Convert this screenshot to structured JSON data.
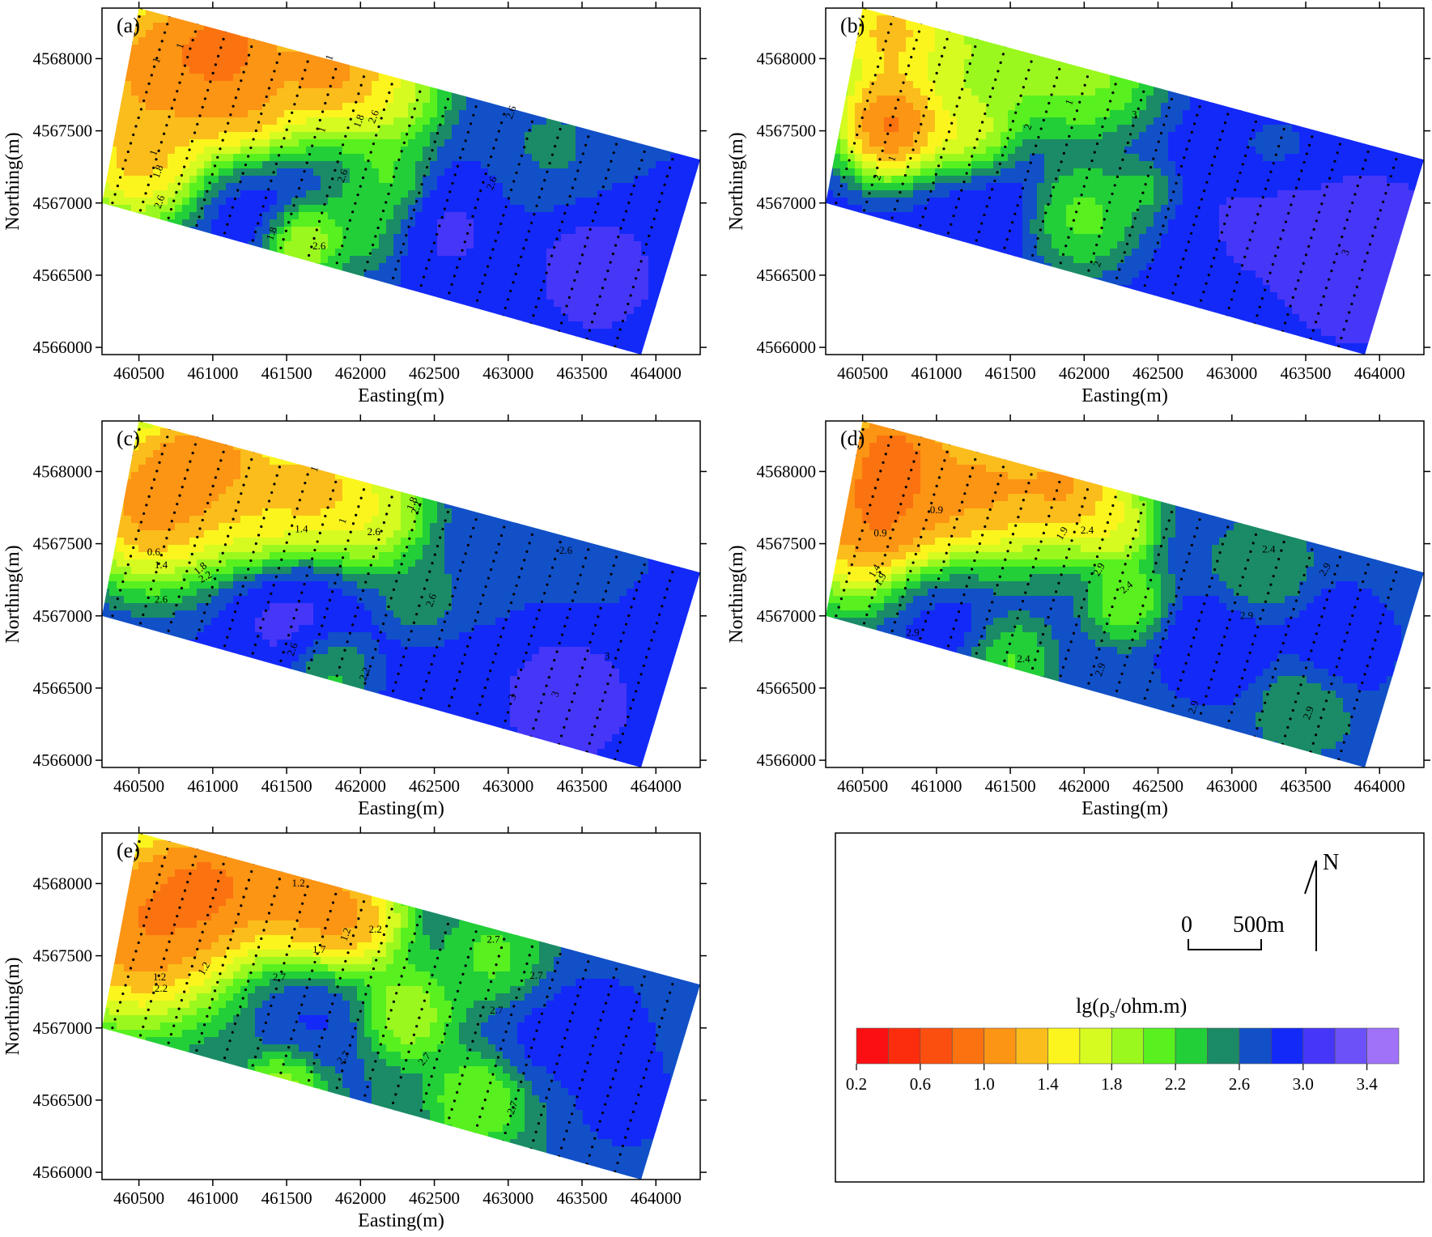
{
  "chart_data": [
    {
      "type": "heatmap",
      "panel": "(a)",
      "xlabel": "Easting(m)",
      "ylabel": "Northing(m)",
      "x_ticks": [
        "460500",
        "461000",
        "461500",
        "462000",
        "462500",
        "463000",
        "463500",
        "464000"
      ],
      "y_ticks": [
        "4568000",
        "4567500",
        "4567000",
        "4566500",
        "4566000"
      ],
      "xlim": [
        460250,
        464300
      ],
      "ylim": [
        4565950,
        4568350
      ],
      "field": {
        "bg": 2.8,
        "blobs": [
          [
            460600,
            4567950,
            0.45,
            0.55
          ],
          [
            461100,
            4568150,
            0.35,
            0.45
          ],
          [
            461800,
            4567950,
            0.3,
            0.5
          ],
          [
            461200,
            4567700,
            0.38,
            0.7
          ],
          [
            460500,
            4567300,
            0.35,
            0.9
          ],
          [
            462100,
            4567800,
            0.35,
            1.2
          ],
          [
            461600,
            4566750,
            0.2,
            1.3
          ],
          [
            462200,
            4567150,
            0.2,
            2.0
          ],
          [
            462000,
            4566850,
            0.25,
            2.1
          ],
          [
            463300,
            4567400,
            0.3,
            2.5
          ],
          [
            463600,
            4566500,
            0.35,
            3.2
          ],
          [
            462600,
            4566800,
            0.3,
            3.1
          ],
          [
            461300,
            4567000,
            0.3,
            3.0
          ]
        ]
      },
      "contour_labels": [
        {
          "text": "1",
          "x": 460640,
          "y": 4567980,
          "rot": -70
        },
        {
          "text": "1",
          "x": 460800,
          "y": 4568080,
          "rot": -70
        },
        {
          "text": "1",
          "x": 461810,
          "y": 4568000,
          "rot": -70
        },
        {
          "text": "1",
          "x": 461760,
          "y": 4567500,
          "rot": -70
        },
        {
          "text": "1.8",
          "x": 462010,
          "y": 4567560,
          "rot": -70
        },
        {
          "text": "2.6",
          "x": 462110,
          "y": 4567590,
          "rot": -70
        },
        {
          "text": "2.6",
          "x": 463040,
          "y": 4567620,
          "rot": -70
        },
        {
          "text": "1",
          "x": 460620,
          "y": 4567340,
          "rot": -70
        },
        {
          "text": "1.8",
          "x": 460650,
          "y": 4567210,
          "rot": -70
        },
        {
          "text": "2.6",
          "x": 460660,
          "y": 4567000,
          "rot": -70
        },
        {
          "text": "2.6",
          "x": 461900,
          "y": 4567180,
          "rot": -70
        },
        {
          "text": "2.6",
          "x": 462910,
          "y": 4567130,
          "rot": -70
        },
        {
          "text": "1.8",
          "x": 461420,
          "y": 4566780,
          "rot": -70
        },
        {
          "text": "2.6",
          "x": 461720,
          "y": 4566680,
          "rot": 0
        }
      ]
    },
    {
      "type": "heatmap",
      "panel": "(b)",
      "xlabel": "Easting(m)",
      "ylabel": "Northing(m)",
      "x_ticks": [
        "460500",
        "461000",
        "461500",
        "462000",
        "462500",
        "463000",
        "463500",
        "464000"
      ],
      "y_ticks": [
        "4568000",
        "4567500",
        "4567000",
        "4566500",
        "4566000"
      ],
      "xlim": [
        460250,
        464300
      ],
      "ylim": [
        4565950,
        4568350
      ],
      "field": {
        "bg": 2.9,
        "blobs": [
          [
            460700,
            4568200,
            0.35,
            0.8
          ],
          [
            460700,
            4567550,
            0.3,
            0.3
          ],
          [
            461300,
            4568000,
            0.4,
            1.5
          ],
          [
            462000,
            4567950,
            0.4,
            1.6
          ],
          [
            461200,
            4567450,
            0.25,
            1.2
          ],
          [
            462000,
            4566900,
            0.3,
            1.9
          ],
          [
            462400,
            4567100,
            0.15,
            2.2
          ],
          [
            463300,
            4567300,
            0.25,
            2.7
          ],
          [
            463900,
            4566600,
            0.4,
            3.3
          ],
          [
            463300,
            4566900,
            0.3,
            3.2
          ],
          [
            461300,
            4567000,
            0.3,
            3.0
          ]
        ]
      },
      "contour_labels": [
        {
          "text": "2",
          "x": 460620,
          "y": 4567170,
          "rot": -70
        },
        {
          "text": "1",
          "x": 460720,
          "y": 4567300,
          "rot": -70
        },
        {
          "text": "1",
          "x": 461920,
          "y": 4567690,
          "rot": -70
        },
        {
          "text": "2",
          "x": 461640,
          "y": 4567520,
          "rot": -70
        },
        {
          "text": "3",
          "x": 462340,
          "y": 4567590,
          "rot": 0
        },
        {
          "text": "2",
          "x": 462110,
          "y": 4566570,
          "rot": -70
        },
        {
          "text": "3",
          "x": 463790,
          "y": 4566650,
          "rot": -70
        }
      ]
    },
    {
      "type": "heatmap",
      "panel": "(c)",
      "xlabel": "Easting(m)",
      "ylabel": "Northing(m)",
      "x_ticks": [
        "460500",
        "461000",
        "461500",
        "462000",
        "462500",
        "463000",
        "463500",
        "464000"
      ],
      "y_ticks": [
        "4568000",
        "4567500",
        "4567000",
        "4566500",
        "4566000"
      ],
      "xlim": [
        460250,
        464300
      ],
      "ylim": [
        4565950,
        4568350
      ],
      "field": {
        "bg": 2.85,
        "blobs": [
          [
            460600,
            4567800,
            0.45,
            0.5
          ],
          [
            461000,
            4568100,
            0.35,
            0.6
          ],
          [
            461700,
            4567900,
            0.35,
            0.8
          ],
          [
            461300,
            4567700,
            0.3,
            1.2
          ],
          [
            462100,
            4567700,
            0.3,
            1.3
          ],
          [
            462400,
            4567150,
            0.2,
            2.3
          ],
          [
            461800,
            4566600,
            0.2,
            2.2
          ],
          [
            462800,
            4567400,
            0.3,
            2.6
          ],
          [
            463500,
            4567500,
            0.3,
            2.6
          ],
          [
            463400,
            4566400,
            0.35,
            3.2
          ],
          [
            461500,
            4567000,
            0.3,
            3.1
          ]
        ]
      },
      "contour_labels": [
        {
          "text": "1",
          "x": 461710,
          "y": 4568010,
          "rot": -70
        },
        {
          "text": "1.4",
          "x": 461600,
          "y": 4567580,
          "rot": 0
        },
        {
          "text": "1",
          "x": 461900,
          "y": 4567650,
          "rot": -70
        },
        {
          "text": "2.6",
          "x": 462090,
          "y": 4567560,
          "rot": 0
        },
        {
          "text": "1.8",
          "x": 462370,
          "y": 4567770,
          "rot": -70
        },
        {
          "text": "2.2",
          "x": 462400,
          "y": 4567740,
          "rot": -70
        },
        {
          "text": "0.6",
          "x": 460600,
          "y": 4567420,
          "rot": 0
        },
        {
          "text": "1.4",
          "x": 460650,
          "y": 4567330,
          "rot": 0
        },
        {
          "text": "1.8",
          "x": 460930,
          "y": 4567310,
          "rot": -40
        },
        {
          "text": "2.2",
          "x": 460960,
          "y": 4567250,
          "rot": -30
        },
        {
          "text": "2.6",
          "x": 460650,
          "y": 4567090,
          "rot": 0
        },
        {
          "text": "2.6",
          "x": 463390,
          "y": 4567430,
          "rot": 0
        },
        {
          "text": "2.6",
          "x": 462500,
          "y": 4567100,
          "rot": -70
        },
        {
          "text": "2.6",
          "x": 461560,
          "y": 4566760,
          "rot": -70
        },
        {
          "text": "2.2",
          "x": 462050,
          "y": 4566590,
          "rot": -70
        },
        {
          "text": "3",
          "x": 463670,
          "y": 4566700,
          "rot": 0
        },
        {
          "text": "3",
          "x": 463050,
          "y": 4566430,
          "rot": -70
        },
        {
          "text": "3",
          "x": 463340,
          "y": 4566450,
          "rot": -70
        }
      ]
    },
    {
      "type": "heatmap",
      "panel": "(d)",
      "xlabel": "Easting(m)",
      "ylabel": "Northing(m)",
      "x_ticks": [
        "460500",
        "461000",
        "461500",
        "462000",
        "462500",
        "463000",
        "463500",
        "464000"
      ],
      "y_ticks": [
        "4568000",
        "4567500",
        "4567000",
        "4566500",
        "4566000"
      ],
      "xlim": [
        460250,
        464300
      ],
      "ylim": [
        4565950,
        4568350
      ],
      "field": {
        "bg": 2.7,
        "blobs": [
          [
            460600,
            4567700,
            0.45,
            0.4
          ],
          [
            460700,
            4568150,
            0.3,
            0.5
          ],
          [
            461300,
            4567900,
            0.4,
            0.7
          ],
          [
            461900,
            4567900,
            0.35,
            0.7
          ],
          [
            462200,
            4567600,
            0.2,
            1.4
          ],
          [
            462300,
            4567100,
            0.2,
            1.8
          ],
          [
            461500,
            4566700,
            0.2,
            2.0
          ],
          [
            463200,
            4567300,
            0.25,
            2.3
          ],
          [
            463500,
            4566400,
            0.25,
            2.3
          ],
          [
            461000,
            4567000,
            0.3,
            3.0
          ],
          [
            462900,
            4566800,
            0.3,
            3.1
          ],
          [
            463700,
            4566800,
            0.3,
            3.1
          ]
        ]
      },
      "contour_labels": [
        {
          "text": "0.9",
          "x": 460620,
          "y": 4567550,
          "rot": 0
        },
        {
          "text": "0.9",
          "x": 461000,
          "y": 4567710,
          "rot": 0
        },
        {
          "text": "1.9",
          "x": 461870,
          "y": 4567560,
          "rot": -60
        },
        {
          "text": "2.4",
          "x": 462020,
          "y": 4567570,
          "rot": 0
        },
        {
          "text": "1.4",
          "x": 460600,
          "y": 4567300,
          "rot": -60
        },
        {
          "text": "1.9",
          "x": 460640,
          "y": 4567240,
          "rot": -60
        },
        {
          "text": "2.4",
          "x": 463250,
          "y": 4567440,
          "rot": 0
        },
        {
          "text": "2.9",
          "x": 463650,
          "y": 4567310,
          "rot": -60
        },
        {
          "text": "2.4",
          "x": 462300,
          "y": 4567180,
          "rot": -40
        },
        {
          "text": "2.9",
          "x": 462120,
          "y": 4567310,
          "rot": -60
        },
        {
          "text": "2.9",
          "x": 460840,
          "y": 4566860,
          "rot": 0
        },
        {
          "text": "2.4",
          "x": 461590,
          "y": 4566680,
          "rot": 0
        },
        {
          "text": "2.9",
          "x": 463100,
          "y": 4566980,
          "rot": 0
        },
        {
          "text": "2.9",
          "x": 462130,
          "y": 4566620,
          "rot": -70
        },
        {
          "text": "2.9",
          "x": 462760,
          "y": 4566360,
          "rot": -70
        },
        {
          "text": "2.9",
          "x": 463540,
          "y": 4566320,
          "rot": -70
        }
      ]
    },
    {
      "type": "heatmap",
      "panel": "(e)",
      "xlabel": "Easting(m)",
      "ylabel": "Northing(m)",
      "x_ticks": [
        "460500",
        "461000",
        "461500",
        "462000",
        "462500",
        "463000",
        "463500",
        "464000"
      ],
      "y_ticks": [
        "4568000",
        "4567500",
        "4567000",
        "4566500",
        "4566000"
      ],
      "xlim": [
        460250,
        464300
      ],
      "ylim": [
        4565950,
        4568350
      ],
      "field": {
        "bg": 2.6,
        "blobs": [
          [
            460500,
            4567700,
            0.5,
            0.5
          ],
          [
            461000,
            4568000,
            0.4,
            0.5
          ],
          [
            461600,
            4567950,
            0.35,
            0.7
          ],
          [
            461900,
            4567750,
            0.3,
            0.8
          ],
          [
            462300,
            4567100,
            0.25,
            1.6
          ],
          [
            462800,
            4566500,
            0.25,
            1.8
          ],
          [
            461500,
            4566600,
            0.2,
            1.6
          ],
          [
            462900,
            4567500,
            0.25,
            2.0
          ],
          [
            463600,
            4567000,
            0.35,
            3.0
          ],
          [
            463800,
            4566500,
            0.3,
            3.0
          ],
          [
            461700,
            4567050,
            0.3,
            2.9
          ],
          [
            463200,
            4566900,
            0.25,
            2.9
          ]
        ]
      },
      "contour_labels": [
        {
          "text": "1.2",
          "x": 461580,
          "y": 4567980,
          "rot": 0
        },
        {
          "text": "1.2",
          "x": 461920,
          "y": 4567640,
          "rot": -70
        },
        {
          "text": "2.2",
          "x": 462100,
          "y": 4567660,
          "rot": 0
        },
        {
          "text": "1.7",
          "x": 461720,
          "y": 4567520,
          "rot": 0
        },
        {
          "text": "1.2",
          "x": 460960,
          "y": 4567400,
          "rot": -60
        },
        {
          "text": "1.2",
          "x": 460640,
          "y": 4567330,
          "rot": 0
        },
        {
          "text": "2.2",
          "x": 460650,
          "y": 4567250,
          "rot": 0
        },
        {
          "text": "2.7",
          "x": 461450,
          "y": 4567330,
          "rot": 0
        },
        {
          "text": "2.7",
          "x": 462900,
          "y": 4567590,
          "rot": 0
        },
        {
          "text": "2.7",
          "x": 463190,
          "y": 4567340,
          "rot": 0
        },
        {
          "text": "2.7",
          "x": 462920,
          "y": 4567100,
          "rot": 0
        },
        {
          "text": "2.7",
          "x": 462450,
          "y": 4566770,
          "rot": -50
        },
        {
          "text": "2.7",
          "x": 461900,
          "y": 4566780,
          "rot": -50
        },
        {
          "text": "2.7",
          "x": 463050,
          "y": 4566440,
          "rot": -70
        }
      ]
    }
  ],
  "legend": {
    "title_prefix": "lg(ρ",
    "title_sub": "s",
    "title_suffix": "/ohm.m)",
    "colors": [
      "#fb0f12",
      "#fc2d0c",
      "#fb4f10",
      "#fb7310",
      "#fc9414",
      "#fbbd1b",
      "#fbf51d",
      "#d6fb21",
      "#9bf81f",
      "#58f01f",
      "#22cf38",
      "#1a8b66",
      "#1150c7",
      "#1329f8",
      "#4636f7",
      "#6b51f7",
      "#9f72f8"
    ],
    "tick_values": [
      "0.2",
      "0.6",
      "1.0",
      "1.4",
      "1.8",
      "2.2",
      "2.6",
      "3.0",
      "3.4"
    ]
  },
  "scale_bar": {
    "zero": "0",
    "length": "500m"
  },
  "north_label": "N"
}
